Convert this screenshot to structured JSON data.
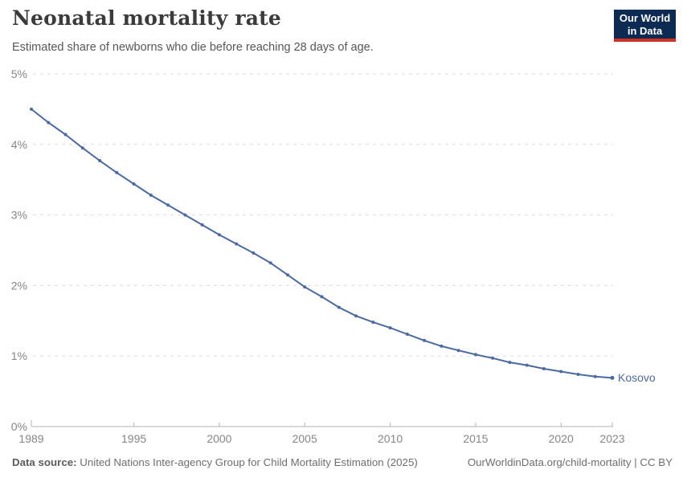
{
  "header": {
    "title": "Neonatal mortality rate",
    "subtitle": "Estimated share of newborns who die before reaching 28 days of age."
  },
  "logo": {
    "line1": "Our World",
    "line2": "in Data",
    "bg_color": "#0d2b52",
    "accent_color": "#cc3226"
  },
  "footer": {
    "data_source_label": "Data source:",
    "data_source_text": " United Nations Inter-agency Group for Child Mortality Estimation (2025)",
    "link_text": "OurWorldinData.org/child-mortality | CC BY"
  },
  "chart_data": {
    "type": "line",
    "title": "Neonatal mortality rate",
    "xlabel": "",
    "ylabel": "",
    "x": [
      1989,
      1990,
      1991,
      1992,
      1993,
      1994,
      1995,
      1996,
      1997,
      1998,
      1999,
      2000,
      2001,
      2002,
      2003,
      2004,
      2005,
      2006,
      2007,
      2008,
      2009,
      2010,
      2011,
      2012,
      2013,
      2014,
      2015,
      2016,
      2017,
      2018,
      2019,
      2020,
      2021,
      2022,
      2023
    ],
    "series": [
      {
        "name": "Kosovo",
        "color": "#4c6aa0",
        "values": [
          4.5,
          4.31,
          4.14,
          3.95,
          3.77,
          3.6,
          3.44,
          3.28,
          3.14,
          3.0,
          2.86,
          2.72,
          2.59,
          2.46,
          2.32,
          2.15,
          1.98,
          1.84,
          1.69,
          1.57,
          1.48,
          1.4,
          1.31,
          1.22,
          1.14,
          1.08,
          1.02,
          0.97,
          0.91,
          0.87,
          0.82,
          0.78,
          0.74,
          0.71,
          0.69
        ]
      }
    ],
    "ylim": [
      0,
      5
    ],
    "yticks": [
      0,
      1,
      2,
      3,
      4,
      5
    ],
    "ytick_labels": [
      "0%",
      "1%",
      "2%",
      "3%",
      "4%",
      "5%"
    ],
    "xticks": [
      1989,
      1995,
      2000,
      2005,
      2010,
      2015,
      2020,
      2023
    ],
    "unit": "%",
    "grid": "horizontal-dashed",
    "legend_position": "end-of-line"
  }
}
